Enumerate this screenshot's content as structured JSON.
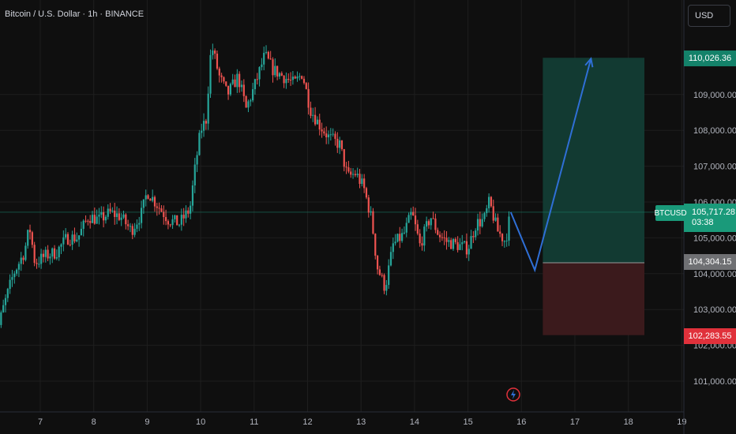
{
  "header": {
    "title": "Bitcoin / U.S. Dollar · 1h · BINANCE",
    "currency": "USD"
  },
  "price_scale": {
    "ticks": [
      "101,000.00",
      "102,000.00",
      "103,000.00",
      "104,000.00",
      "105,000.00",
      "106,000.00",
      "107,000.00",
      "108,000.00",
      "109,000.00"
    ],
    "tick_values": [
      101000,
      102000,
      103000,
      104000,
      105000,
      106000,
      107000,
      108000,
      109000
    ],
    "target_label": "110,026.36",
    "entry_label": "104,304.15",
    "stop_label": "102,283.55",
    "last_price_label": "105,717.28",
    "countdown": "03:38",
    "symbol": "BTCUSD"
  },
  "colors": {
    "up": "#26a69a",
    "down": "#ef5350",
    "target_zone": "#123a32",
    "stop_zone": "#3b1a1c",
    "arrow": "#2f6fd6",
    "grid": "#1e1e1e",
    "background": "#0f0f0f"
  },
  "chart_data": {
    "type": "candlestick",
    "title": "Bitcoin / U.S. Dollar · 1h · BINANCE",
    "x_tick_labels": [
      "7",
      "8",
      "9",
      "10",
      "11",
      "12",
      "13",
      "14",
      "15",
      "16",
      "17",
      "18",
      "19"
    ],
    "x_tick_values": [
      7,
      8,
      9,
      10,
      11,
      12,
      13,
      14,
      15,
      16,
      17,
      18,
      19
    ],
    "ylim": [
      100500,
      110800
    ],
    "close_path": [
      [
        6.1,
        101800
      ],
      [
        6.3,
        103000
      ],
      [
        6.5,
        104000
      ],
      [
        6.7,
        104600
      ],
      [
        6.8,
        105300
      ],
      [
        6.9,
        104300
      ],
      [
        7.1,
        104500
      ],
      [
        7.3,
        104600
      ],
      [
        7.5,
        105000
      ],
      [
        7.7,
        105000
      ],
      [
        7.9,
        105600
      ],
      [
        8.1,
        105500
      ],
      [
        8.3,
        105700
      ],
      [
        8.5,
        105600
      ],
      [
        8.7,
        105200
      ],
      [
        8.9,
        105700
      ],
      [
        9.0,
        106300
      ],
      [
        9.2,
        105900
      ],
      [
        9.4,
        105500
      ],
      [
        9.6,
        105400
      ],
      [
        9.8,
        105800
      ],
      [
        9.9,
        107000
      ],
      [
        10.0,
        108000
      ],
      [
        10.1,
        108300
      ],
      [
        10.2,
        110400
      ],
      [
        10.35,
        109500
      ],
      [
        10.5,
        109000
      ],
      [
        10.7,
        109500
      ],
      [
        10.85,
        108600
      ],
      [
        11.0,
        109200
      ],
      [
        11.2,
        110100
      ],
      [
        11.35,
        109700
      ],
      [
        11.55,
        109500
      ],
      [
        11.75,
        109300
      ],
      [
        11.9,
        109600
      ],
      [
        12.05,
        108600
      ],
      [
        12.2,
        108200
      ],
      [
        12.4,
        107800
      ],
      [
        12.6,
        107600
      ],
      [
        12.75,
        106700
      ],
      [
        12.9,
        106800
      ],
      [
        13.05,
        106400
      ],
      [
        13.2,
        105500
      ],
      [
        13.3,
        104200
      ],
      [
        13.45,
        103600
      ],
      [
        13.6,
        104800
      ],
      [
        13.8,
        105100
      ],
      [
        13.95,
        105700
      ],
      [
        14.1,
        104800
      ],
      [
        14.3,
        105600
      ],
      [
        14.45,
        105100
      ],
      [
        14.6,
        104900
      ],
      [
        14.8,
        104800
      ],
      [
        15.0,
        104700
      ],
      [
        15.15,
        105400
      ],
      [
        15.3,
        105500
      ],
      [
        15.4,
        106000
      ],
      [
        15.55,
        105200
      ],
      [
        15.7,
        104900
      ],
      [
        15.8,
        105717
      ]
    ],
    "projection": {
      "path": [
        [
          15.8,
          105717
        ],
        [
          16.25,
          104100
        ],
        [
          17.3,
          110000
        ]
      ]
    },
    "position": {
      "entry": 104304.15,
      "target": 110026.36,
      "stop": 102283.55,
      "x_start": 16.4,
      "x_end": 18.3
    },
    "last_price": 105717.28
  }
}
